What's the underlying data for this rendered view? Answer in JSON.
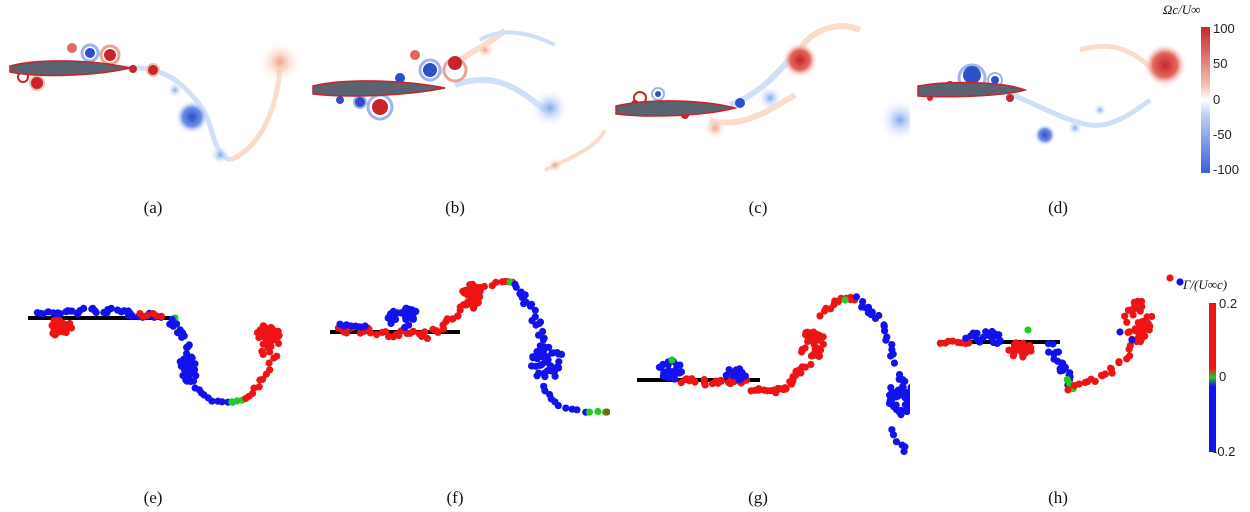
{
  "figure": {
    "top_captions": [
      "(a)",
      "(b)",
      "(c)",
      "(d)"
    ],
    "bottom_captions": [
      "(e)",
      "(f)",
      "(g)",
      "(h)"
    ],
    "vorticity_colorbar": {
      "title": "Ωc/U∞",
      "ticks": [
        "100",
        "50",
        "0",
        "-50",
        "-100"
      ],
      "range": [
        -100,
        100
      ],
      "colors": {
        "negative": "#3b5fd6",
        "zero": "#ffffff",
        "positive": "#c8242c"
      }
    },
    "circulation_colorbar": {
      "title": "Γ/(U∞c)",
      "ticks": [
        "0.2",
        "0",
        "-0.2"
      ],
      "range": [
        -0.2,
        0.2
      ],
      "colors": {
        "negative": "#1212ee",
        "zero": "#22cc22",
        "positive": "#ee1414"
      }
    },
    "airfoil_color": "#5b6270",
    "plate_color": "#000000"
  }
}
